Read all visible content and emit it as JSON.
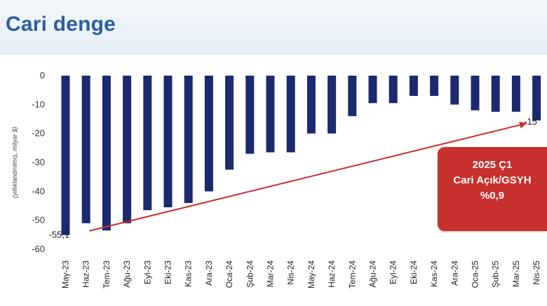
{
  "header": {
    "title": "Cari denge"
  },
  "callout": {
    "line1": "2025 Ç1",
    "line2": "Cari Açık/GSYH",
    "line3": "%0,9"
  },
  "colors": {
    "bar": "#1b2a6e",
    "trend": "#c8302d",
    "title": "#2c5f9e",
    "callout_bg": "#c8302d"
  },
  "chart_data": {
    "type": "bar",
    "title": "Cari denge",
    "ylabel": "(yıllıklandırılmış, milyar $)",
    "xlabel": "",
    "ylim": [
      -60,
      0
    ],
    "yticks": [
      0,
      -10,
      -20,
      -30,
      -40,
      -50,
      -60
    ],
    "categories": [
      "May-23",
      "Haz-23",
      "Tem-23",
      "Ağu-23",
      "Eyl-23",
      "Eki-23",
      "Kas-23",
      "Ara-23",
      "Oca-24",
      "Şub-24",
      "Mar-24",
      "Nis-24",
      "May-24",
      "Haz-24",
      "Tem-24",
      "Ağu-24",
      "Eyl-24",
      "Eki-24",
      "Kas-24",
      "Ara-24",
      "Oca-25",
      "Şub-25",
      "Mar-25",
      "Nis-25"
    ],
    "values": [
      -55.1,
      -51.0,
      -53.5,
      -51.0,
      -46.5,
      -45.5,
      -44.0,
      -40.0,
      -32.5,
      -27.0,
      -26.5,
      -26.5,
      -20.0,
      -20.0,
      -14.0,
      -9.5,
      -9.5,
      -7.0,
      -7.0,
      -10.0,
      -12.0,
      -12.5,
      -12.5,
      -15.5
    ],
    "annotations": [
      {
        "text": "-55,1",
        "category": "May-23"
      },
      {
        "text": "-15",
        "category": "Nis-25"
      }
    ],
    "trend_line": {
      "from": {
        "category": "May-23",
        "value": -55.1
      },
      "to": {
        "category": "Nis-25",
        "value": -15.5
      }
    }
  }
}
